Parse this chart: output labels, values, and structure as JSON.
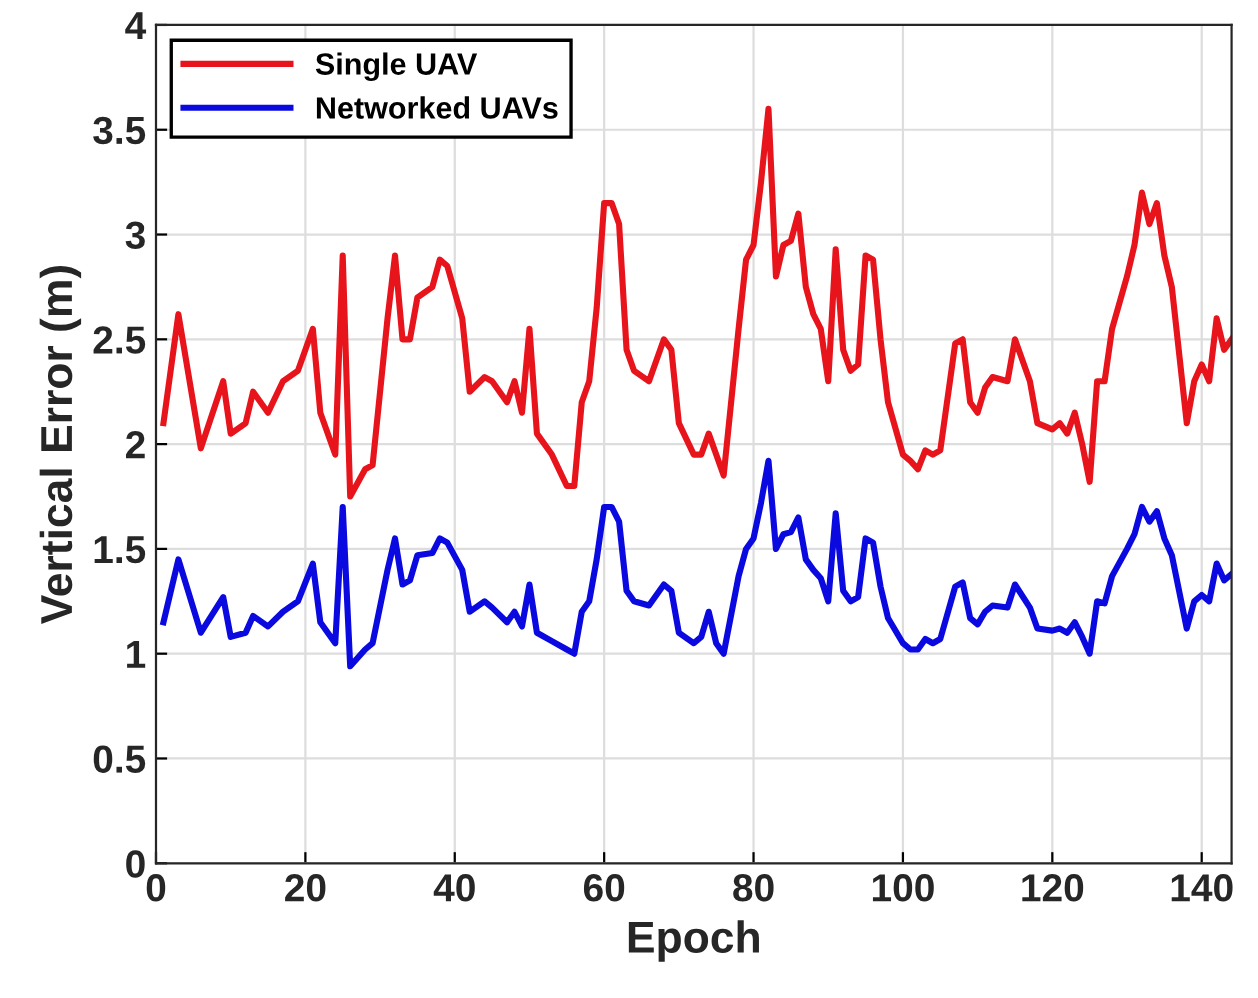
{
  "chart_data": {
    "type": "line",
    "xlabel": "Epoch",
    "ylabel": "Vertical Error (m)",
    "xlim": [
      0,
      144
    ],
    "xticks": [
      0,
      20,
      40,
      60,
      80,
      100,
      120,
      140
    ],
    "ylim": [
      0,
      4
    ],
    "yticks": [
      0,
      0.5,
      1,
      1.5,
      2,
      2.5,
      3,
      3.5,
      4
    ],
    "grid": true,
    "legend": "top left",
    "line_style": "solid",
    "marker": "none",
    "x": [
      1,
      3,
      6,
      9,
      10,
      12,
      13,
      15,
      17,
      19,
      21,
      22,
      24,
      25,
      26,
      28,
      29,
      31,
      32,
      33,
      34,
      35,
      37,
      38,
      39,
      41,
      42,
      44,
      45,
      47,
      48,
      49,
      50,
      51,
      53,
      55,
      56,
      57,
      58,
      59,
      60,
      61,
      62,
      63,
      64,
      66,
      68,
      69,
      70,
      72,
      73,
      74,
      75,
      76,
      78,
      79,
      80,
      81,
      82,
      83,
      84,
      85,
      86,
      87,
      88,
      89,
      90,
      91,
      92,
      93,
      94,
      95,
      96,
      97,
      98,
      100,
      101,
      102,
      103,
      104,
      105,
      107,
      108,
      109,
      110,
      111,
      112,
      114,
      115,
      117,
      118,
      120,
      121,
      122,
      123,
      124,
      125,
      126,
      127,
      128,
      130,
      131,
      132,
      133,
      134,
      135,
      136,
      138,
      139,
      140,
      141,
      142,
      143,
      144
    ],
    "series": [
      {
        "name": "Single UAV",
        "color": "#e8141c",
        "values": [
          2.1,
          2.62,
          1.98,
          2.3,
          2.05,
          2.1,
          2.25,
          2.15,
          2.3,
          2.35,
          2.55,
          2.15,
          1.95,
          2.9,
          1.75,
          1.88,
          1.9,
          2.6,
          2.9,
          2.5,
          2.5,
          2.7,
          2.75,
          2.88,
          2.85,
          2.6,
          2.25,
          2.32,
          2.3,
          2.2,
          2.3,
          2.15,
          2.55,
          2.05,
          1.95,
          1.8,
          1.8,
          2.2,
          2.3,
          2.65,
          3.15,
          3.15,
          3.05,
          2.45,
          2.35,
          2.3,
          2.5,
          2.45,
          2.1,
          1.95,
          1.95,
          2.05,
          1.95,
          1.85,
          2.55,
          2.88,
          2.95,
          3.25,
          3.6,
          2.8,
          2.95,
          2.97,
          3.1,
          2.75,
          2.62,
          2.55,
          2.3,
          2.93,
          2.45,
          2.35,
          2.38,
          2.9,
          2.88,
          2.5,
          2.2,
          1.95,
          1.92,
          1.88,
          1.97,
          1.95,
          1.97,
          2.48,
          2.5,
          2.2,
          2.15,
          2.27,
          2.32,
          2.3,
          2.5,
          2.3,
          2.1,
          2.07,
          2.1,
          2.05,
          2.15,
          2.0,
          1.82,
          2.3,
          2.3,
          2.55,
          2.8,
          2.95,
          3.2,
          3.05,
          3.15,
          2.9,
          2.75,
          2.1,
          2.3,
          2.38,
          2.3,
          2.6,
          2.45,
          2.5
        ]
      },
      {
        "name": "Networked UAVs",
        "color": "#0a0ae0",
        "values": [
          1.15,
          1.45,
          1.1,
          1.27,
          1.08,
          1.1,
          1.18,
          1.13,
          1.2,
          1.25,
          1.43,
          1.15,
          1.05,
          1.7,
          0.94,
          1.02,
          1.05,
          1.4,
          1.55,
          1.33,
          1.35,
          1.47,
          1.48,
          1.55,
          1.53,
          1.4,
          1.2,
          1.25,
          1.22,
          1.15,
          1.2,
          1.13,
          1.33,
          1.1,
          1.06,
          1.02,
          1.0,
          1.2,
          1.25,
          1.45,
          1.7,
          1.7,
          1.63,
          1.3,
          1.25,
          1.23,
          1.33,
          1.3,
          1.1,
          1.05,
          1.08,
          1.2,
          1.05,
          1.0,
          1.37,
          1.5,
          1.55,
          1.72,
          1.92,
          1.5,
          1.57,
          1.58,
          1.65,
          1.45,
          1.4,
          1.36,
          1.25,
          1.67,
          1.3,
          1.25,
          1.27,
          1.55,
          1.53,
          1.32,
          1.17,
          1.05,
          1.02,
          1.02,
          1.07,
          1.05,
          1.07,
          1.32,
          1.34,
          1.17,
          1.14,
          1.2,
          1.23,
          1.22,
          1.33,
          1.22,
          1.12,
          1.11,
          1.12,
          1.1,
          1.15,
          1.08,
          1.0,
          1.25,
          1.24,
          1.37,
          1.5,
          1.57,
          1.7,
          1.63,
          1.68,
          1.55,
          1.47,
          1.12,
          1.25,
          1.28,
          1.25,
          1.43,
          1.35,
          1.38
        ]
      }
    ]
  }
}
